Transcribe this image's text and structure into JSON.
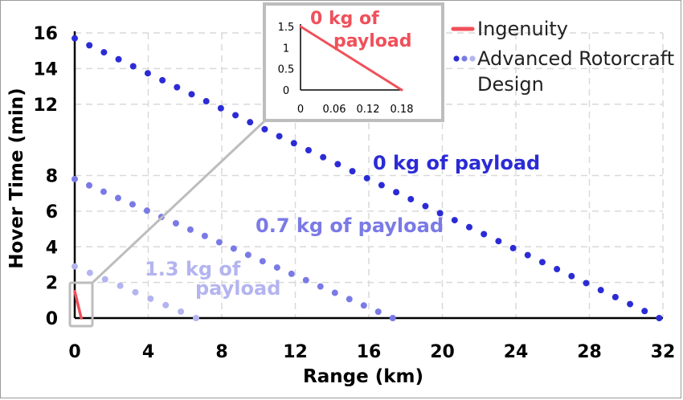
{
  "chart_data": {
    "type": "line",
    "xlabel": "Range (km)",
    "ylabel": "Hover Time (min)",
    "xlim": [
      0,
      32
    ],
    "ylim": [
      0,
      16
    ],
    "x_ticks": [
      0,
      4,
      8,
      12,
      16,
      20,
      24,
      28,
      32
    ],
    "y_ticks": [
      0,
      2,
      4,
      6,
      8,
      12,
      14,
      16
    ],
    "grid": true,
    "legend_position": "top-right",
    "legend": [
      {
        "label": "Ingenuity",
        "style": "solid",
        "color": "#f0505a"
      },
      {
        "label": "Advanced Rotorcraft Design",
        "style": "dotted",
        "colors": [
          "#2b2bd6",
          "#7a7ae6",
          "#b4b4f0"
        ]
      }
    ],
    "series": [
      {
        "label": "0 kg of payload",
        "style": "dotted",
        "color": "#2b2bd6",
        "x": [
          0,
          31.8
        ],
        "y": [
          15.7,
          0
        ]
      },
      {
        "label": "0.7 kg of payload",
        "style": "dotted",
        "color": "#7a7ae6",
        "x": [
          0,
          17.3
        ],
        "y": [
          7.8,
          0
        ]
      },
      {
        "label": "1.3 kg of payload",
        "style": "dotted",
        "color": "#b4b4f0",
        "x": [
          0,
          6.6
        ],
        "y": [
          2.9,
          0
        ]
      },
      {
        "label": "Ingenuity",
        "style": "solid",
        "color": "#f0505a",
        "x": [
          0,
          0.18
        ],
        "y": [
          1.5,
          0
        ]
      }
    ],
    "inset": {
      "xlim": [
        0,
        0.18
      ],
      "ylim": [
        0,
        1.5
      ],
      "x_ticks": [
        "0",
        "0.06",
        "0.12",
        "0.18"
      ],
      "y_ticks": [
        "0",
        "0.5",
        "1",
        "1.5"
      ],
      "annotation": "0 kg of payload",
      "series": {
        "x": [
          0,
          0.18
        ],
        "y": [
          1.5,
          0
        ],
        "color": "#f0505a"
      }
    },
    "annotations": [
      {
        "text": "0 kg of payload",
        "color": "#2b2bd6"
      },
      {
        "text": "0.7 kg of payload",
        "color": "#7a7ae6"
      },
      {
        "text": "1.3 kg of",
        "color": "#b4b4f0"
      },
      {
        "text": "payload",
        "color": "#b4b4f0"
      }
    ]
  },
  "inset_annotation_lines": [
    "0 kg of",
    "payload"
  ],
  "legend_text": {
    "ingenuity": "Ingenuity",
    "advanced_line1": "Advanced Rotorcraft",
    "advanced_line2": "Design"
  }
}
